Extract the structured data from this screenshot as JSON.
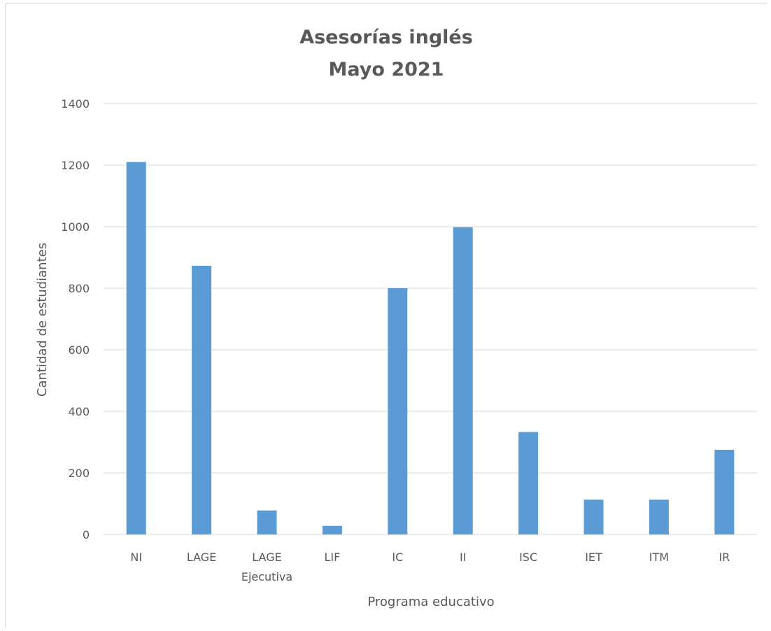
{
  "chart_data": {
    "type": "bar",
    "title": "Asesorías inglés",
    "subtitle": "Mayo 2021",
    "xlabel": "Programa educativo",
    "ylabel": "Cantidad de estudiantes",
    "categories": [
      "NI",
      "LAGE",
      "LAGE Ejecutiva",
      "LIF",
      "IC",
      "II",
      "ISC",
      "IET",
      "ITM",
      "IR"
    ],
    "category_lines": [
      [
        "NI"
      ],
      [
        "LAGE"
      ],
      [
        "LAGE",
        "Ejecutiva"
      ],
      [
        "LIF"
      ],
      [
        "IC"
      ],
      [
        "II"
      ],
      [
        "ISC"
      ],
      [
        "IET"
      ],
      [
        "ITM"
      ],
      [
        "IR"
      ]
    ],
    "values": [
      1210,
      873,
      78,
      28,
      800,
      998,
      333,
      113,
      113,
      275
    ],
    "ylim": [
      0,
      1400
    ],
    "yticks": [
      "0",
      "200",
      "400",
      "600",
      "800",
      "1000",
      "1200",
      "1400"
    ],
    "grid": true,
    "legend": "none",
    "bar_color": "#5b9bd5",
    "grid_color": "#d9d9d9",
    "text_color": "#595959"
  }
}
